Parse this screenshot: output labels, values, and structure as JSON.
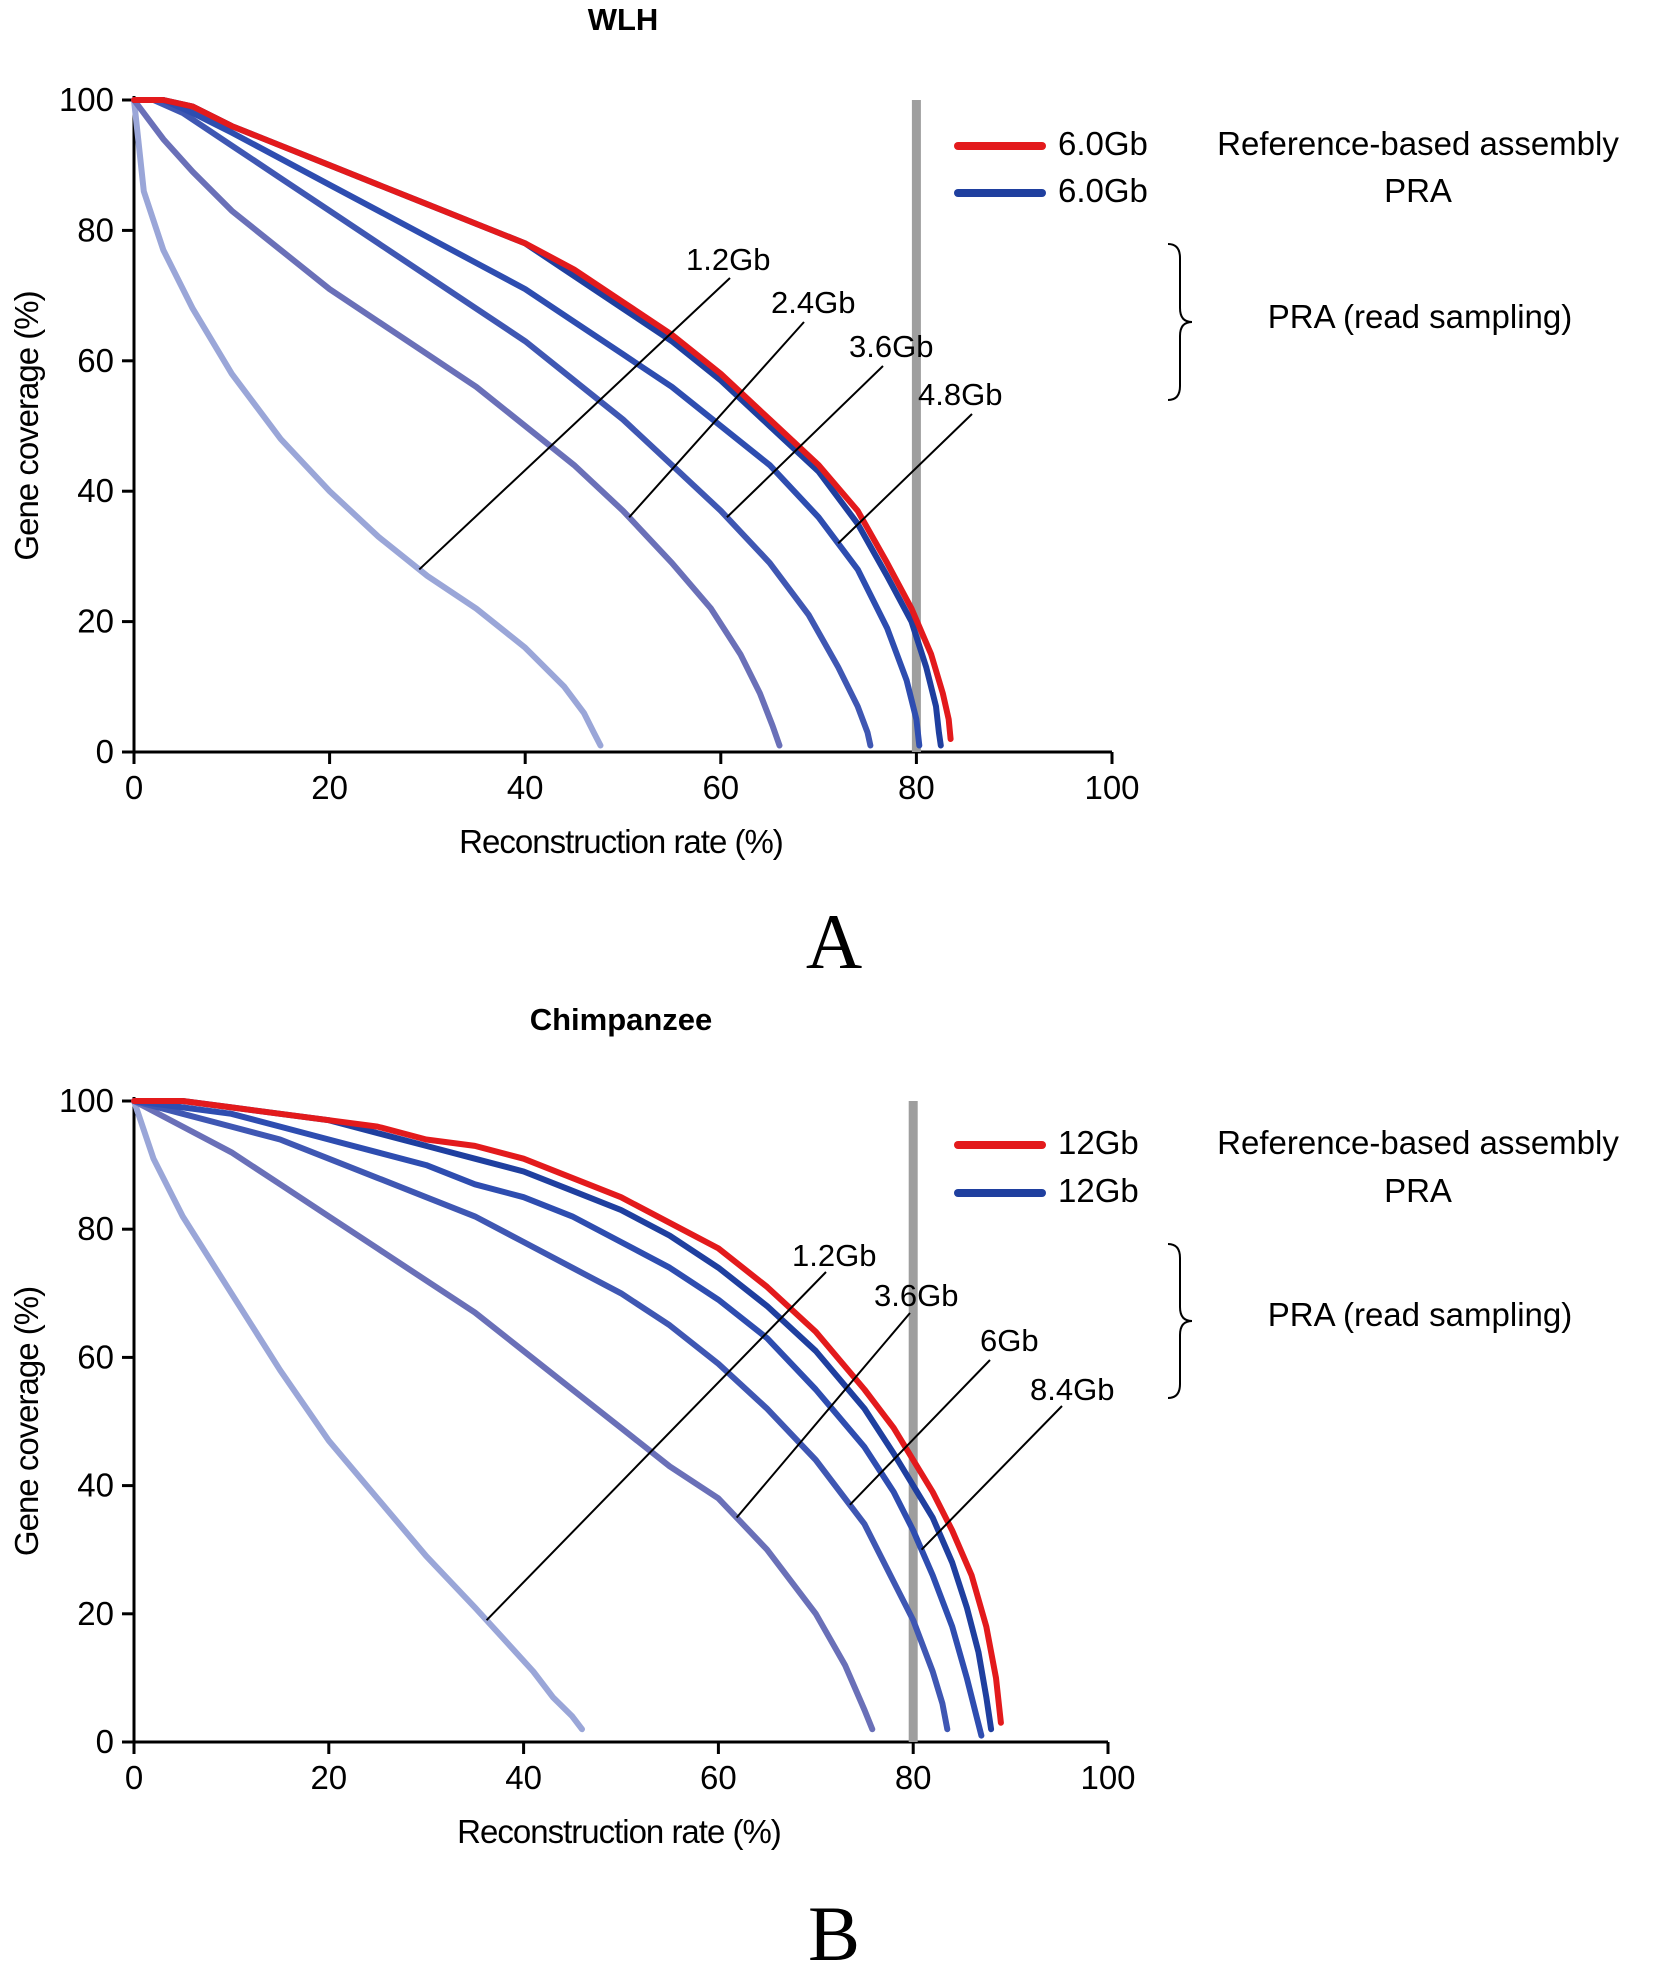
{
  "chart_data": [
    {
      "type": "line",
      "title": "WLH",
      "panel_label": "A",
      "xlabel": "Reconstruction rate (%)",
      "ylabel": "Gene coverage (%)",
      "xlim": [
        0,
        100
      ],
      "ylim": [
        0,
        100
      ],
      "xticks": [
        "0",
        "20",
        "40",
        "60",
        "80",
        "100"
      ],
      "yticks": [
        "0",
        "20",
        "40",
        "60",
        "80",
        "100"
      ],
      "grid": false,
      "vline": {
        "x": 80,
        "color": "#9e9e9e"
      },
      "legend": [
        {
          "size": "6.0Gb",
          "label": "Reference-based assembly",
          "color": "#e31a1c"
        },
        {
          "size": "6.0Gb",
          "label": "PRA",
          "color": "#1f3f9f"
        }
      ],
      "bracket_label": "PRA (read sampling)",
      "series": [
        {
          "name": "1.2Gb",
          "color": "#9aa6d8",
          "points": [
            [
              0,
              100
            ],
            [
              1,
              86
            ],
            [
              3,
              77
            ],
            [
              6,
              68
            ],
            [
              10,
              58
            ],
            [
              15,
              48
            ],
            [
              20,
              40
            ],
            [
              25,
              33
            ],
            [
              30,
              27
            ],
            [
              35,
              22
            ],
            [
              40,
              16
            ],
            [
              44,
              10
            ],
            [
              46,
              6
            ],
            [
              47,
              3
            ],
            [
              47.7,
              1
            ]
          ]
        },
        {
          "name": "2.4Gb",
          "color": "#6a70b8",
          "points": [
            [
              0,
              100
            ],
            [
              3,
              94
            ],
            [
              6,
              89
            ],
            [
              10,
              83
            ],
            [
              15,
              77
            ],
            [
              20,
              71
            ],
            [
              25,
              66
            ],
            [
              30,
              61
            ],
            [
              35,
              56
            ],
            [
              40,
              50
            ],
            [
              45,
              44
            ],
            [
              50,
              37
            ],
            [
              55,
              29
            ],
            [
              59,
              22
            ],
            [
              62,
              15
            ],
            [
              64,
              9
            ],
            [
              65.3,
              4
            ],
            [
              66,
              1
            ]
          ]
        },
        {
          "name": "3.6Gb",
          "color": "#3f57b3",
          "points": [
            [
              0,
              100
            ],
            [
              2,
              100
            ],
            [
              5,
              98
            ],
            [
              10,
              93
            ],
            [
              15,
              88
            ],
            [
              20,
              83
            ],
            [
              25,
              78
            ],
            [
              30,
              73
            ],
            [
              35,
              68
            ],
            [
              40,
              63
            ],
            [
              45,
              57
            ],
            [
              50,
              51
            ],
            [
              55,
              44
            ],
            [
              60,
              37
            ],
            [
              65,
              29
            ],
            [
              69,
              21
            ],
            [
              72,
              13
            ],
            [
              74,
              7
            ],
            [
              75,
              3
            ],
            [
              75.3,
              1
            ]
          ]
        },
        {
          "name": "4.8Gb",
          "color": "#2e4db0",
          "points": [
            [
              0,
              100
            ],
            [
              3,
              100
            ],
            [
              6,
              98
            ],
            [
              10,
              95
            ],
            [
              15,
              91
            ],
            [
              20,
              87
            ],
            [
              25,
              83
            ],
            [
              30,
              79
            ],
            [
              35,
              75
            ],
            [
              40,
              71
            ],
            [
              45,
              66
            ],
            [
              50,
              61
            ],
            [
              55,
              56
            ],
            [
              60,
              50
            ],
            [
              65,
              44
            ],
            [
              70,
              36
            ],
            [
              74,
              28
            ],
            [
              77,
              19
            ],
            [
              79,
              11
            ],
            [
              80,
              5
            ],
            [
              80.3,
              1
            ]
          ]
        },
        {
          "name": "6.0Gb PRA",
          "color": "#1f3f9f",
          "points": [
            [
              0,
              100
            ],
            [
              3,
              100
            ],
            [
              6,
              99
            ],
            [
              10,
              96
            ],
            [
              15,
              93
            ],
            [
              20,
              90
            ],
            [
              25,
              87
            ],
            [
              30,
              84
            ],
            [
              35,
              81
            ],
            [
              40,
              78
            ],
            [
              45,
              73
            ],
            [
              50,
              68
            ],
            [
              55,
              63
            ],
            [
              60,
              57
            ],
            [
              65,
              50
            ],
            [
              70,
              43
            ],
            [
              74,
              35
            ],
            [
              77,
              27
            ],
            [
              79.5,
              20
            ],
            [
              81,
              13
            ],
            [
              82,
              7
            ],
            [
              82.3,
              3
            ],
            [
              82.5,
              1
            ]
          ]
        },
        {
          "name": "6.0Gb Reference-based assembly",
          "color": "#e31a1c",
          "points": [
            [
              0,
              100
            ],
            [
              3,
              100
            ],
            [
              6,
              99
            ],
            [
              10,
              96
            ],
            [
              15,
              93
            ],
            [
              20,
              90
            ],
            [
              25,
              87
            ],
            [
              30,
              84
            ],
            [
              35,
              81
            ],
            [
              40,
              78
            ],
            [
              45,
              74
            ],
            [
              50,
              69
            ],
            [
              55,
              64
            ],
            [
              60,
              58
            ],
            [
              65,
              51
            ],
            [
              70,
              44
            ],
            [
              74,
              37
            ],
            [
              77,
              29
            ],
            [
              79.5,
              22
            ],
            [
              81.5,
              15
            ],
            [
              82.7,
              9
            ],
            [
              83.3,
              5
            ],
            [
              83.5,
              2
            ]
          ]
        }
      ],
      "annotations": [
        {
          "text": "1.2Gb",
          "series": "1.2Gb"
        },
        {
          "text": "2.4Gb",
          "series": "2.4Gb"
        },
        {
          "text": "3.6Gb",
          "series": "3.6Gb"
        },
        {
          "text": "4.8Gb",
          "series": "4.8Gb"
        }
      ]
    },
    {
      "type": "line",
      "title": "Chimpanzee",
      "panel_label": "B",
      "xlabel": "Reconstruction rate (%)",
      "ylabel": "Gene coverage (%)",
      "xlim": [
        0,
        100
      ],
      "ylim": [
        0,
        100
      ],
      "xticks": [
        "0",
        "20",
        "40",
        "60",
        "80",
        "100"
      ],
      "yticks": [
        "0",
        "20",
        "40",
        "60",
        "80",
        "100"
      ],
      "grid": false,
      "vline": {
        "x": 80,
        "color": "#9e9e9e"
      },
      "legend": [
        {
          "size": "12Gb",
          "label": "Reference-based assembly",
          "color": "#e31a1c"
        },
        {
          "size": "12Gb",
          "label": "PRA",
          "color": "#1f3f9f"
        }
      ],
      "bracket_label": "PRA (read sampling)",
      "series": [
        {
          "name": "1.2Gb",
          "color": "#9aa6d8",
          "points": [
            [
              0,
              100
            ],
            [
              2,
              91
            ],
            [
              5,
              82
            ],
            [
              10,
              70
            ],
            [
              15,
              58
            ],
            [
              20,
              47
            ],
            [
              25,
              38
            ],
            [
              30,
              29
            ],
            [
              35,
              21
            ],
            [
              38,
              16
            ],
            [
              41,
              11
            ],
            [
              43,
              7
            ],
            [
              45,
              4
            ],
            [
              46,
              2
            ]
          ]
        },
        {
          "name": "3.6Gb",
          "color": "#6a70b8",
          "points": [
            [
              0,
              100
            ],
            [
              5,
              96
            ],
            [
              10,
              92
            ],
            [
              15,
              87
            ],
            [
              20,
              82
            ],
            [
              25,
              77
            ],
            [
              30,
              72
            ],
            [
              35,
              67
            ],
            [
              40,
              61
            ],
            [
              45,
              55
            ],
            [
              50,
              49
            ],
            [
              55,
              43
            ],
            [
              60,
              38
            ],
            [
              65,
              30
            ],
            [
              70,
              20
            ],
            [
              73,
              12
            ],
            [
              75,
              5
            ],
            [
              75.8,
              2
            ]
          ]
        },
        {
          "name": "6Gb",
          "color": "#3f57b3",
          "points": [
            [
              0,
              100
            ],
            [
              5,
              98
            ],
            [
              10,
              96
            ],
            [
              15,
              94
            ],
            [
              20,
              91
            ],
            [
              25,
              88
            ],
            [
              30,
              85
            ],
            [
              35,
              82
            ],
            [
              40,
              78
            ],
            [
              45,
              74
            ],
            [
              50,
              70
            ],
            [
              55,
              65
            ],
            [
              60,
              59
            ],
            [
              65,
              52
            ],
            [
              70,
              44
            ],
            [
              75,
              34
            ],
            [
              78,
              25
            ],
            [
              80,
              19
            ],
            [
              82,
              11
            ],
            [
              83,
              6
            ],
            [
              83.5,
              2
            ]
          ]
        },
        {
          "name": "8.4Gb",
          "color": "#2e4db0",
          "points": [
            [
              0,
              100
            ],
            [
              5,
              99
            ],
            [
              10,
              98
            ],
            [
              15,
              96
            ],
            [
              20,
              94
            ],
            [
              25,
              92
            ],
            [
              30,
              90
            ],
            [
              35,
              87
            ],
            [
              40,
              85
            ],
            [
              45,
              82
            ],
            [
              50,
              78
            ],
            [
              55,
              74
            ],
            [
              60,
              69
            ],
            [
              65,
              63
            ],
            [
              70,
              55
            ],
            [
              75,
              46
            ],
            [
              78,
              39
            ],
            [
              80,
              33
            ],
            [
              82,
              26
            ],
            [
              84,
              18
            ],
            [
              85.5,
              10
            ],
            [
              86.5,
              4
            ],
            [
              87,
              1
            ]
          ]
        },
        {
          "name": "12Gb PRA",
          "color": "#1f3f9f",
          "points": [
            [
              0,
              100
            ],
            [
              5,
              100
            ],
            [
              10,
              99
            ],
            [
              15,
              98
            ],
            [
              20,
              97
            ],
            [
              25,
              95
            ],
            [
              30,
              93
            ],
            [
              35,
              91
            ],
            [
              40,
              89
            ],
            [
              45,
              86
            ],
            [
              50,
              83
            ],
            [
              55,
              79
            ],
            [
              60,
              74
            ],
            [
              65,
              68
            ],
            [
              70,
              61
            ],
            [
              75,
              52
            ],
            [
              78,
              45
            ],
            [
              80,
              40
            ],
            [
              82,
              35
            ],
            [
              84,
              28
            ],
            [
              85.5,
              21
            ],
            [
              86.7,
              14
            ],
            [
              87.5,
              7
            ],
            [
              88,
              2
            ]
          ]
        },
        {
          "name": "12Gb Reference-based assembly",
          "color": "#e31a1c",
          "points": [
            [
              0,
              100
            ],
            [
              5,
              100
            ],
            [
              10,
              99
            ],
            [
              15,
              98
            ],
            [
              20,
              97
            ],
            [
              25,
              96
            ],
            [
              30,
              94
            ],
            [
              35,
              93
            ],
            [
              40,
              91
            ],
            [
              45,
              88
            ],
            [
              50,
              85
            ],
            [
              55,
              81
            ],
            [
              60,
              77
            ],
            [
              65,
              71
            ],
            [
              70,
              64
            ],
            [
              75,
              55
            ],
            [
              78,
              49
            ],
            [
              80,
              44
            ],
            [
              82,
              39
            ],
            [
              84,
              33
            ],
            [
              86,
              26
            ],
            [
              87.5,
              18
            ],
            [
              88.5,
              10
            ],
            [
              89,
              3
            ]
          ]
        }
      ],
      "annotations": [
        {
          "text": "1.2Gb",
          "series": "1.2Gb"
        },
        {
          "text": "3.6Gb",
          "series": "3.6Gb"
        },
        {
          "text": "6Gb",
          "series": "6Gb"
        },
        {
          "text": "8.4Gb",
          "series": "8.4Gb"
        }
      ]
    }
  ]
}
